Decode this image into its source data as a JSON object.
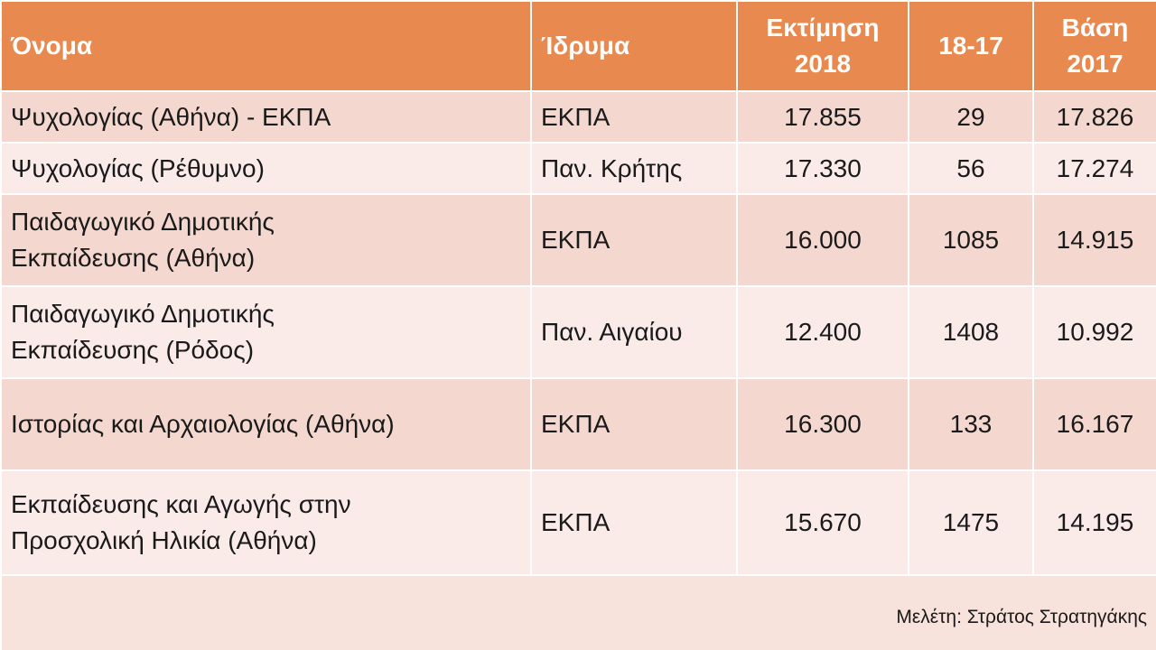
{
  "table": {
    "headers": [
      "Όνομα",
      "Ίδρυμα",
      "Εκτίμηση\n2018",
      "18-17",
      "Βάση\n2017"
    ],
    "rows": [
      [
        "Ψυχολογίας (Αθήνα) - ΕΚΠΑ",
        "ΕΚΠΑ",
        "17.855",
        "29",
        "17.826"
      ],
      [
        "Ψυχολογίας (Ρέθυμνο)",
        "Παν. Κρήτης",
        "17.330",
        "56",
        "17.274"
      ],
      [
        "Παιδαγωγικό Δημοτικής\nΕκπαίδευσης (Αθήνα)",
        "ΕΚΠΑ",
        "16.000",
        "1085",
        "14.915"
      ],
      [
        "Παιδαγωγικό Δημοτικής\nΕκπαίδευσης (Ρόδος)",
        "Παν. Αιγαίου",
        "12.400",
        "1408",
        "10.992"
      ],
      [
        "Ιστορίας και Αρχαιολογίας (Αθήνα)",
        "ΕΚΠΑ",
        "16.300",
        "133",
        "16.167"
      ],
      [
        "Εκπαίδευσης και Αγωγής στην\nΠροσχολική Ηλικία (Αθήνα)",
        "ΕΚΠΑ",
        "15.670",
        "1475",
        "14.195"
      ]
    ],
    "footer": "Μελέτη: Στράτος Στρατηγάκης"
  }
}
